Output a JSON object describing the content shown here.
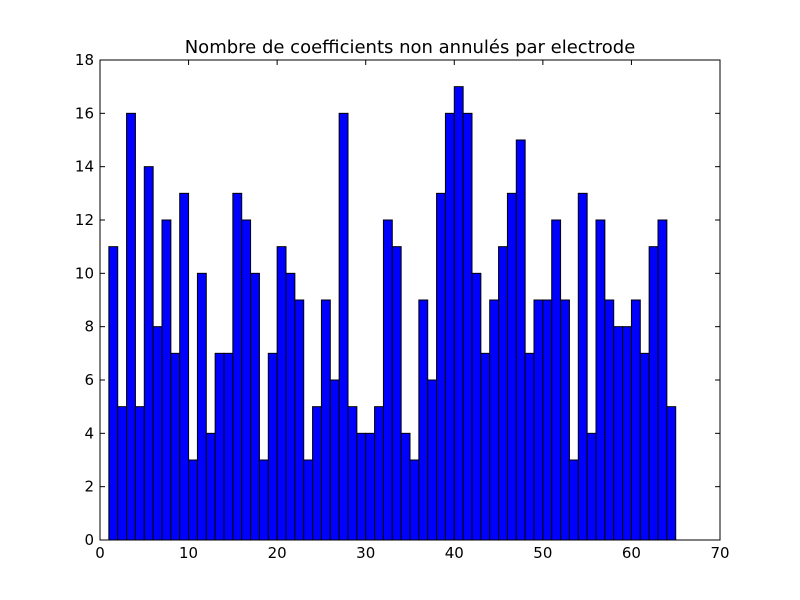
{
  "chart_data": {
    "type": "bar",
    "title": "Nombre de coefficients non annulés par electrode",
    "xlabel": "",
    "ylabel": "",
    "xlim": [
      0,
      70
    ],
    "ylim": [
      0,
      18
    ],
    "xticks": [
      0,
      10,
      20,
      30,
      40,
      50,
      60,
      70
    ],
    "yticks": [
      0,
      2,
      4,
      6,
      8,
      10,
      12,
      14,
      16,
      18
    ],
    "bar_color": "#0000ff",
    "edge_color": "#000000",
    "grid": false,
    "x": [
      1,
      2,
      3,
      4,
      5,
      6,
      7,
      8,
      9,
      10,
      11,
      12,
      13,
      14,
      15,
      16,
      17,
      18,
      19,
      20,
      21,
      22,
      23,
      24,
      25,
      26,
      27,
      28,
      29,
      30,
      31,
      32,
      33,
      34,
      35,
      36,
      37,
      38,
      39,
      40,
      41,
      42,
      43,
      44,
      45,
      46,
      47,
      48,
      49,
      50,
      51,
      52,
      53,
      54,
      55,
      56,
      57,
      58,
      59,
      60,
      61,
      62,
      63,
      64
    ],
    "values": [
      11,
      5,
      16,
      5,
      14,
      8,
      12,
      7,
      13,
      3,
      10,
      4,
      7,
      7,
      13,
      12,
      10,
      3,
      7,
      11,
      10,
      9,
      3,
      5,
      9,
      6,
      16,
      5,
      4,
      4,
      5,
      12,
      11,
      4,
      3,
      9,
      6,
      13,
      16,
      17,
      16,
      10,
      7,
      9,
      11,
      13,
      15,
      7,
      9,
      9,
      12,
      9,
      3,
      13,
      4,
      12,
      9,
      8,
      8,
      9,
      7,
      11,
      12,
      5
    ]
  }
}
